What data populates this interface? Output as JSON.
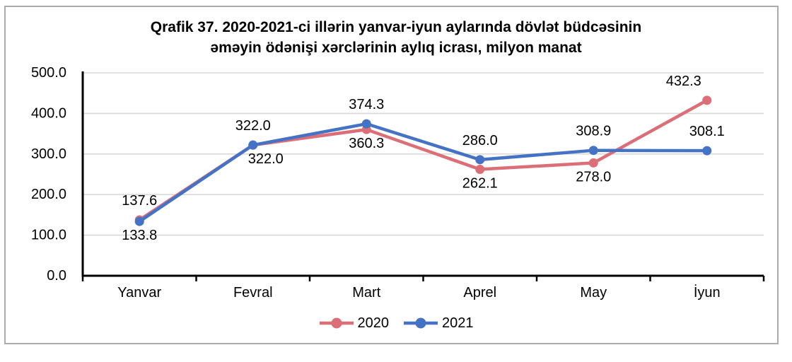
{
  "chart_data": {
    "type": "line",
    "title": "Qrafik 37. 2020-2021-ci illərin yanvar-iyun aylarında dövlət büdcəsinin əməyin ödənişi xərclərinin aylıq icrası, milyon manat",
    "title_lines": [
      "Qrafik 37. 2020-2021-ci illərin yanvar-iyun aylarında dövlət büdcəsinin",
      "əməyin ödənişi xərclərinin aylıq icrası, milyon manat"
    ],
    "categories": [
      "Yanvar",
      "Fevral",
      "Mart",
      "Aprel",
      "May",
      "İyun"
    ],
    "series": [
      {
        "name": "2020",
        "color": "#DC6E77",
        "values": [
          137.6,
          322.0,
          360.3,
          262.1,
          278.0,
          432.3
        ],
        "label_placement": [
          "above",
          "below",
          "below",
          "below",
          "below",
          "above"
        ],
        "label_dx": [
          0,
          18,
          0,
          0,
          0,
          -33
        ]
      },
      {
        "name": "2021",
        "color": "#4472C4",
        "values": [
          133.8,
          322.0,
          374.3,
          286.0,
          308.9,
          308.1
        ],
        "label_placement": [
          "below",
          "above",
          "above",
          "above",
          "above",
          "above"
        ],
        "label_dx": [
          0,
          0,
          0,
          0,
          0,
          0
        ]
      }
    ],
    "ylim": [
      0,
      500
    ],
    "yticks": [
      0,
      100,
      200,
      300,
      400,
      500
    ],
    "ytick_decimals": 1,
    "value_label_decimals": 1,
    "grid": true,
    "legend_position": "bottom",
    "styles": {
      "gridline_color": "#D9D9D9",
      "axis_color": "#000000",
      "text_color": "#000000",
      "frame_border_color": "#ABABAB",
      "background_color": "#FFFFFF"
    }
  }
}
